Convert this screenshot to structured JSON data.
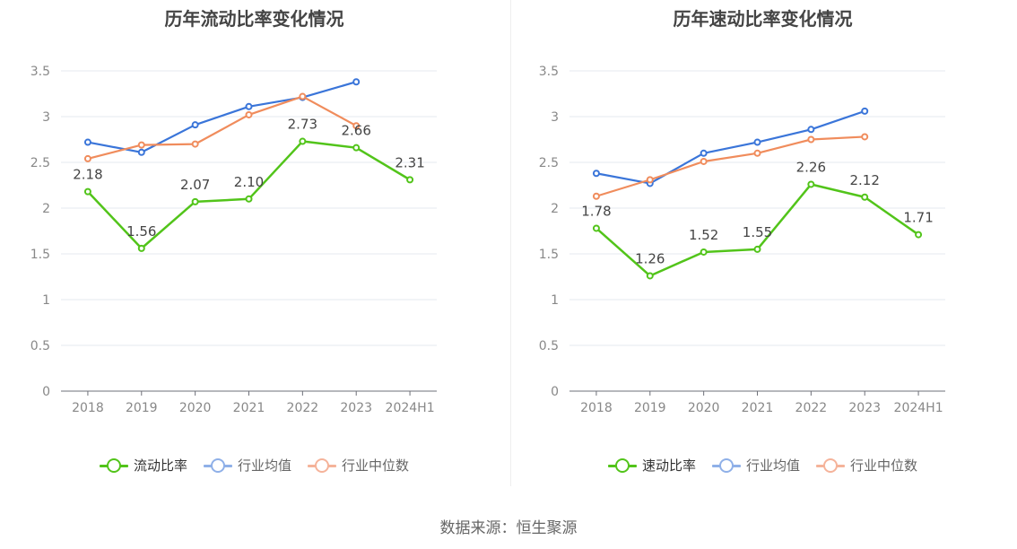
{
  "source": "数据来源：恒生聚源",
  "colors": {
    "company": "#52c41a",
    "avg": "#3a75d9",
    "median": "#f08c5c",
    "avg_legend": "#8fb0e8",
    "median_legend": "#f5b39a"
  },
  "chart_data": [
    {
      "type": "line",
      "title": "历年流动比率变化情况",
      "categories": [
        "2018",
        "2019",
        "2020",
        "2021",
        "2022",
        "2023",
        "2024H1"
      ],
      "ylim": [
        0,
        3.5
      ],
      "yticks": [
        "0",
        "0.5",
        "1",
        "1.5",
        "2",
        "2.5",
        "3",
        "3.5"
      ],
      "grid": true,
      "legend_position": "bottom",
      "series": [
        {
          "name": "流动比率",
          "key": "company",
          "values": [
            2.18,
            1.56,
            2.07,
            2.1,
            2.73,
            2.66,
            2.31
          ],
          "labels": [
            "2.18",
            "1.56",
            "2.07",
            "2.10",
            "2.73",
            "2.66",
            "2.31"
          ]
        },
        {
          "name": "行业均值",
          "key": "avg",
          "values": [
            2.72,
            2.61,
            2.91,
            3.11,
            3.21,
            3.38,
            null
          ]
        },
        {
          "name": "行业中位数",
          "key": "median",
          "values": [
            2.54,
            2.69,
            2.7,
            3.02,
            3.22,
            2.9,
            null
          ]
        }
      ]
    },
    {
      "type": "line",
      "title": "历年速动比率变化情况",
      "categories": [
        "2018",
        "2019",
        "2020",
        "2021",
        "2022",
        "2023",
        "2024H1"
      ],
      "ylim": [
        0,
        3.5
      ],
      "yticks": [
        "0",
        "0.5",
        "1",
        "1.5",
        "2",
        "2.5",
        "3",
        "3.5"
      ],
      "grid": true,
      "legend_position": "bottom",
      "series": [
        {
          "name": "速动比率",
          "key": "company",
          "values": [
            1.78,
            1.26,
            1.52,
            1.55,
            2.26,
            2.12,
            1.71
          ],
          "labels": [
            "1.78",
            "1.26",
            "1.52",
            "1.55",
            "2.26",
            "2.12",
            "1.71"
          ]
        },
        {
          "name": "行业均值",
          "key": "avg",
          "values": [
            2.38,
            2.27,
            2.6,
            2.72,
            2.86,
            3.06,
            null
          ]
        },
        {
          "name": "行业中位数",
          "key": "median",
          "values": [
            2.13,
            2.31,
            2.51,
            2.6,
            2.75,
            2.78,
            null
          ]
        }
      ]
    }
  ]
}
